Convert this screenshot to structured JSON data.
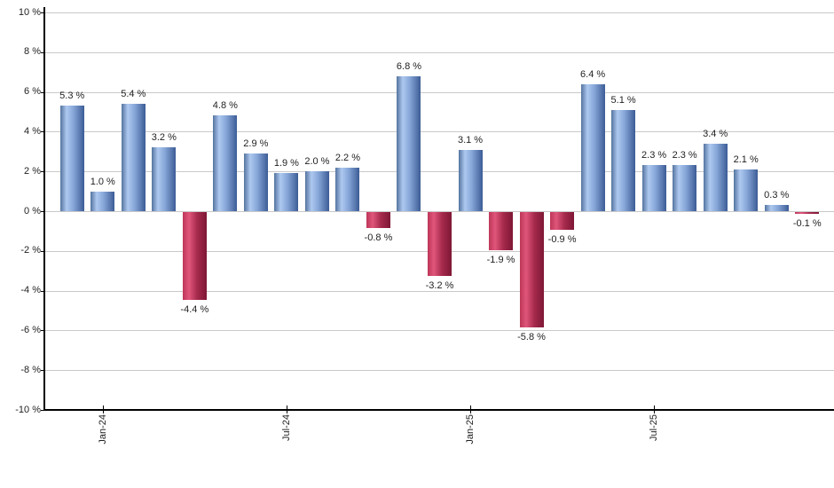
{
  "chart_data": {
    "type": "bar",
    "title": "",
    "unit": "%",
    "grid": true,
    "values": [
      5.3,
      1.0,
      5.4,
      3.2,
      -4.4,
      4.8,
      2.9,
      1.9,
      2.0,
      2.2,
      -0.8,
      6.8,
      -3.2,
      3.1,
      -1.9,
      -5.8,
      -0.9,
      6.4,
      5.1,
      2.3,
      2.3,
      3.4,
      2.1,
      0.3,
      -0.1
    ],
    "bar_labels": [
      "5.3 %",
      "1.0 %",
      "5.4 %",
      "3.2 %",
      "-4.4 %",
      "4.8 %",
      "2.9 %",
      "1.9 %",
      "2.0 %",
      "2.2 %",
      "-0.8 %",
      "6.8 %",
      "-3.2 %",
      "3.1 %",
      "-1.9 %",
      "-5.8 %",
      "-0.9 %",
      "6.4 %",
      "5.1 %",
      "2.3 %",
      "2.3 %",
      "3.4 %",
      "2.1 %",
      "0.3 %",
      "-0.1 %"
    ],
    "x_axis": {
      "tick_labels": [
        {
          "label": "Jan-24",
          "bar_index": 1
        },
        {
          "label": "Jul-24",
          "bar_index": 7
        },
        {
          "label": "Jan-25",
          "bar_index": 13
        },
        {
          "label": "Jul-25",
          "bar_index": 19
        }
      ]
    },
    "y_axis": {
      "min": -10,
      "max": 10,
      "step": 2,
      "tick_labels": [
        "10 %",
        "8 %",
        "6 %",
        "4 %",
        "2 %",
        "0 %",
        "-2 %",
        "-4 %",
        "-6 %",
        "-8 %",
        "-10 %"
      ]
    },
    "colors": {
      "positive_bar": "#6f93cc",
      "positive_gradient": [
        "#54749f",
        "#aec9f0",
        "#86a6d8",
        "#3c5c96"
      ],
      "negative_bar": "#c54e70",
      "negative_gradient": [
        "#bd3658",
        "#e0567b",
        "#a62a4c",
        "#7e1735"
      ],
      "gridline": "#c9c9c9",
      "axis": "#000000",
      "text": "#1f1f1f"
    }
  }
}
